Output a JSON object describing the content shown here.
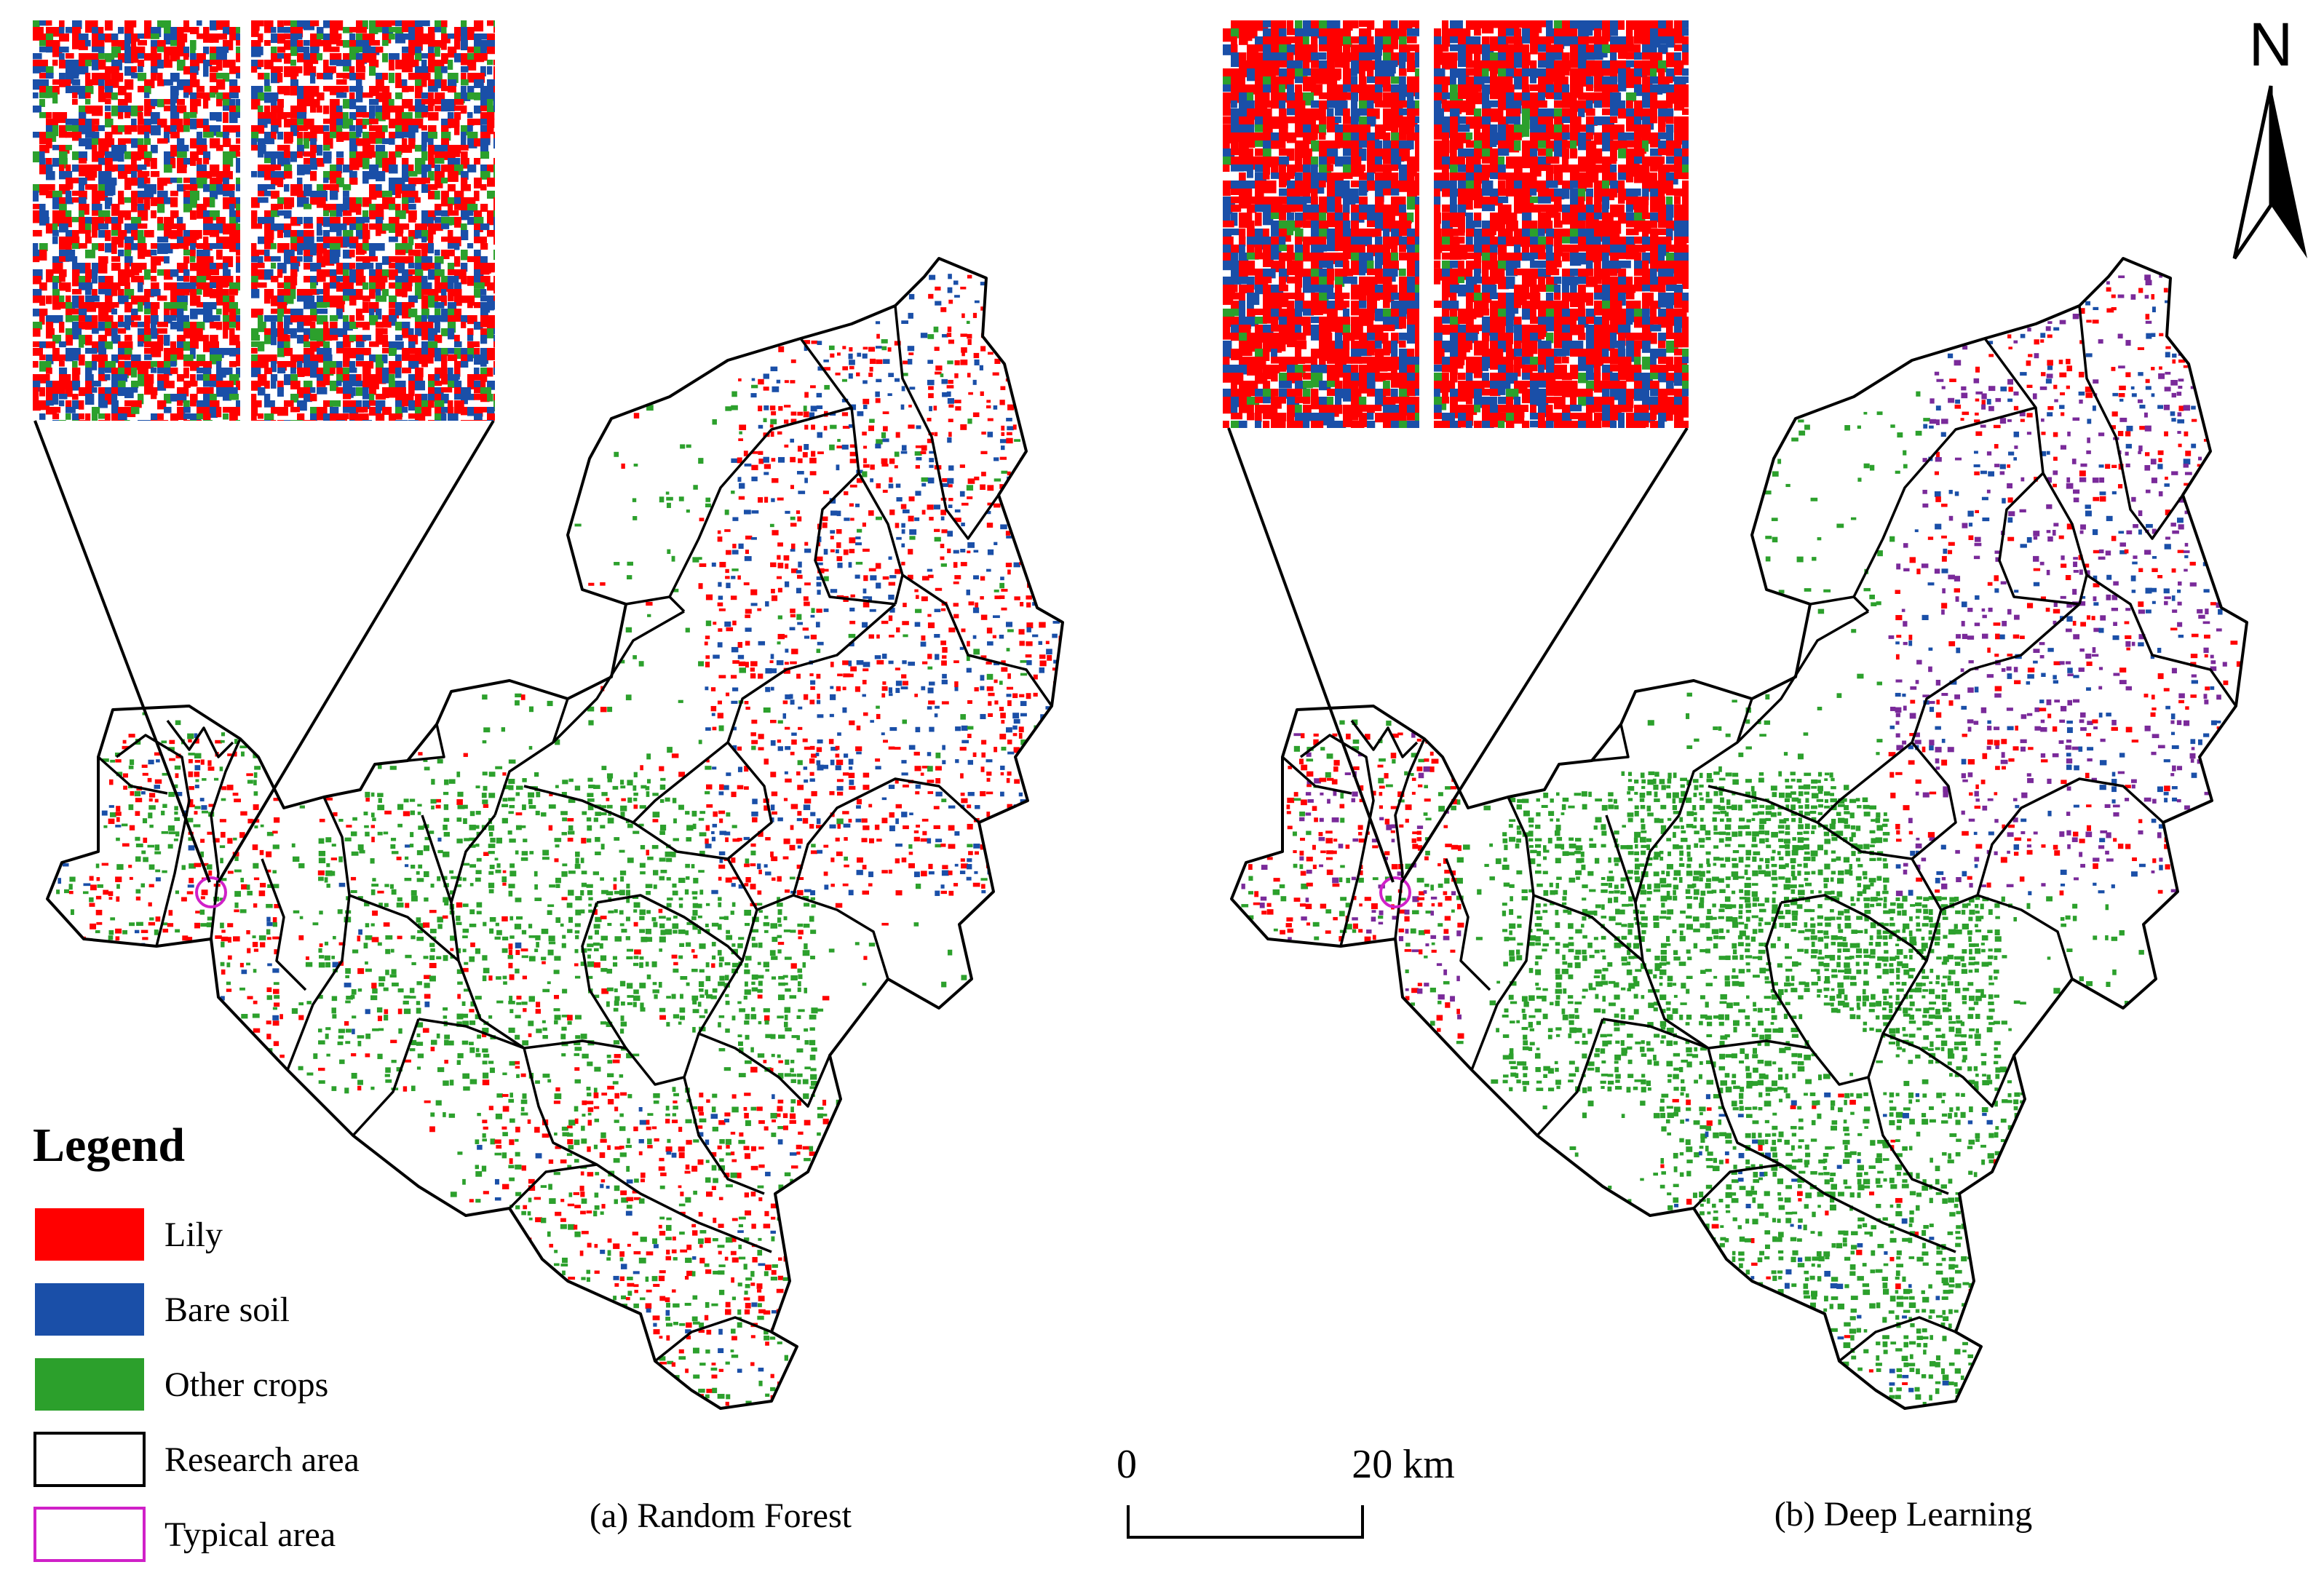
{
  "panels": [
    {
      "label": "(a) Random Forest",
      "method": "random-forest"
    },
    {
      "label": "(b) Deep Learning",
      "method": "deep-learning"
    }
  ],
  "legend": {
    "title": "Legend",
    "items": [
      {
        "label": "Lily",
        "color": "#ff0000",
        "kind": "fill"
      },
      {
        "label": "Bare soil",
        "color": "#1a4fa8",
        "kind": "fill"
      },
      {
        "label": "Other crops",
        "color": "#2ca02c",
        "kind": "fill"
      },
      {
        "label": "Research area",
        "color": "#000000",
        "kind": "outline"
      },
      {
        "label": "Typical area",
        "color": "#d020c8",
        "kind": "outline"
      }
    ]
  },
  "scale_bar": {
    "start_label": "0",
    "end_label": "20 km"
  },
  "north_arrow": {
    "label": "N"
  },
  "colors": {
    "lily": "#ff0000",
    "bare_soil": "#1a4fa8",
    "other_crops": "#2ca02c",
    "boundary": "#000000",
    "typical_area": "#d020c8"
  }
}
